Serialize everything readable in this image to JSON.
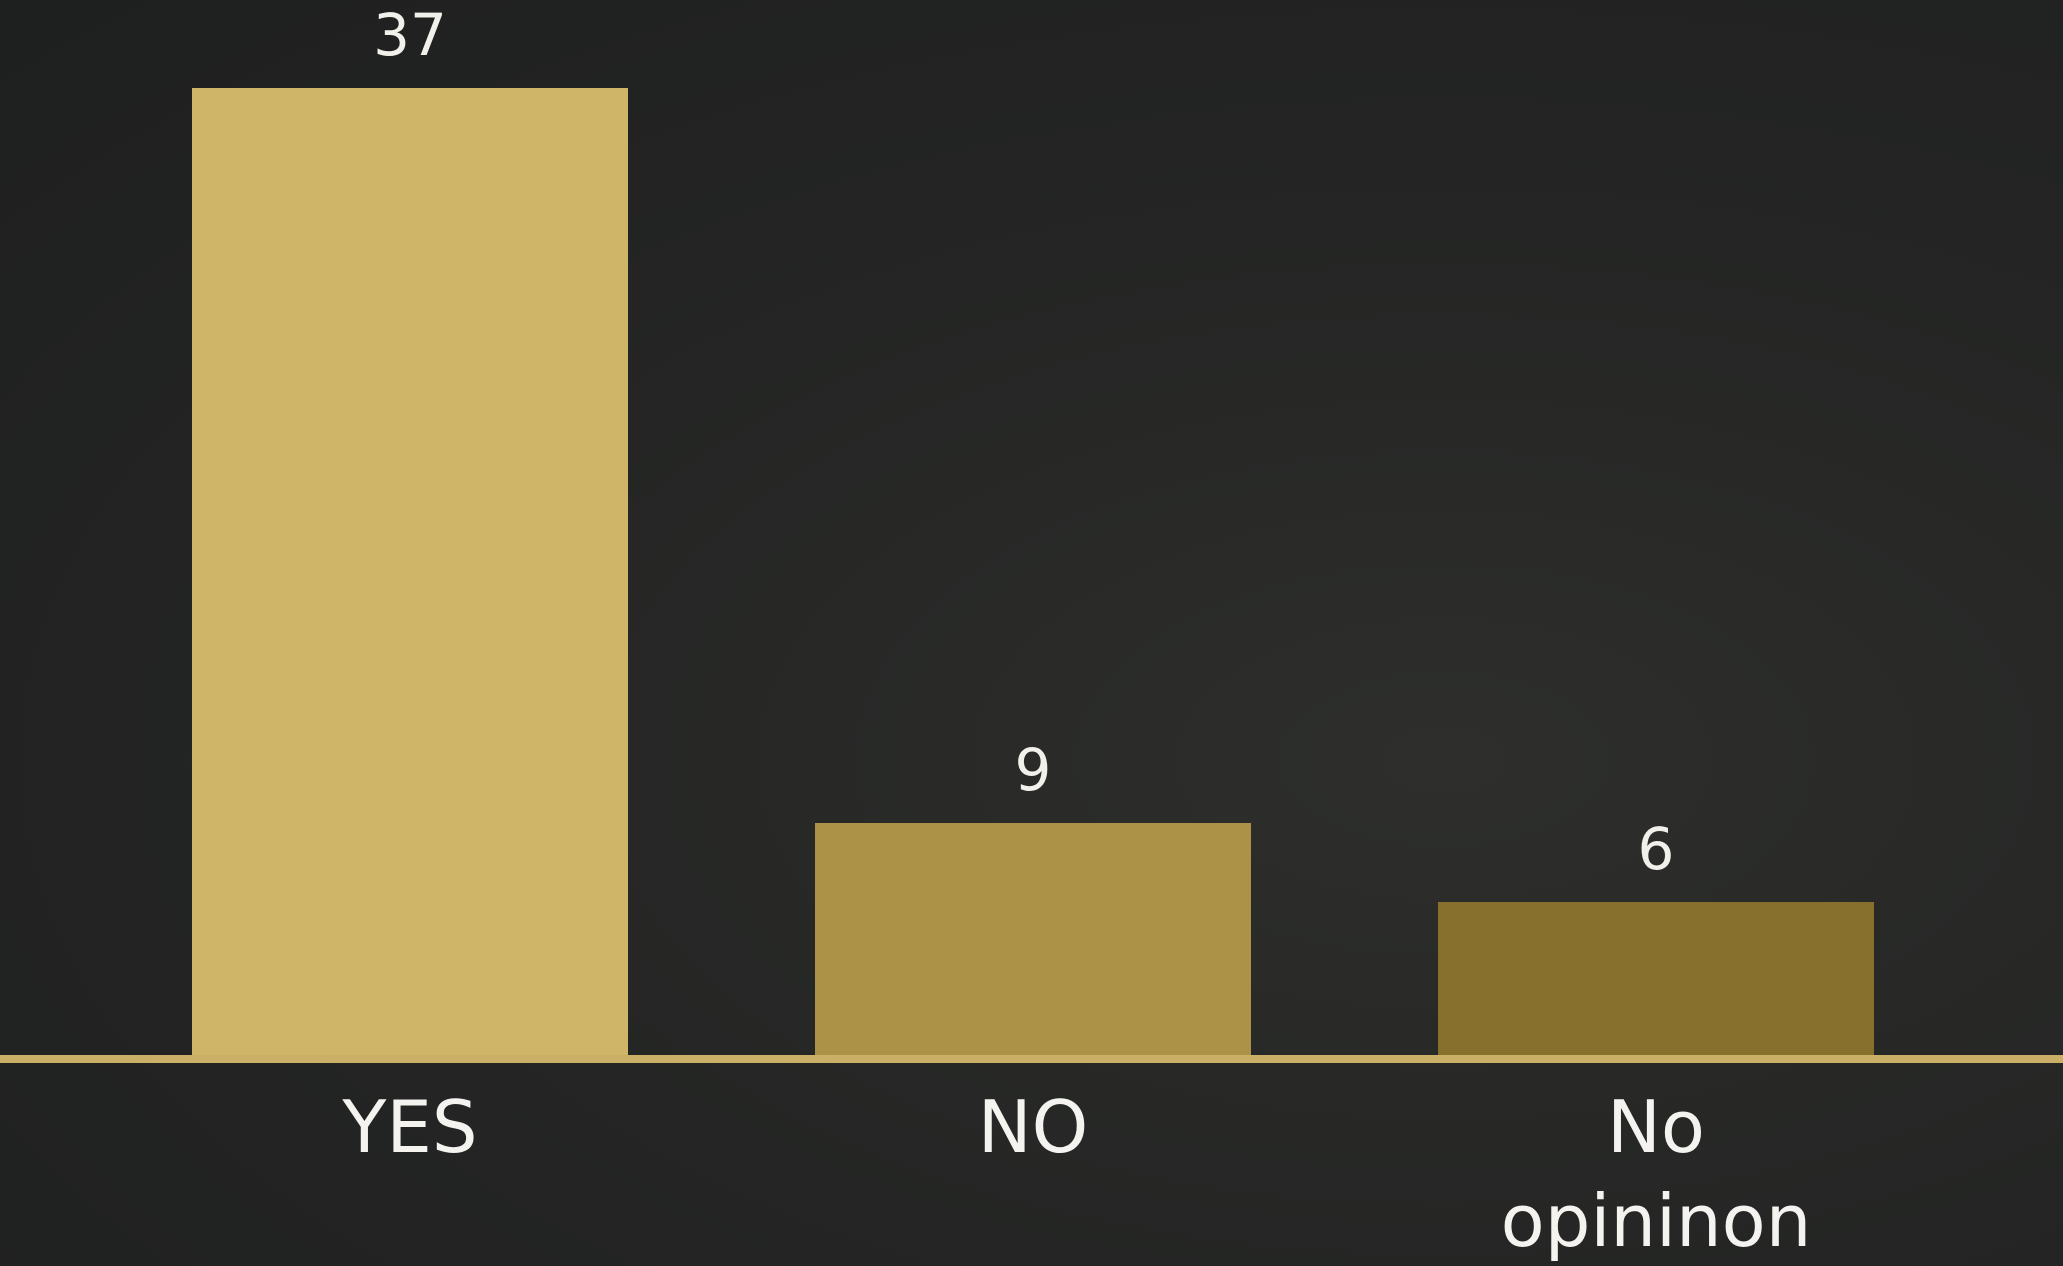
{
  "chart_data": {
    "type": "bar",
    "categories": [
      "YES",
      "NO",
      "No opininon"
    ],
    "values": [
      37,
      9,
      6
    ],
    "colors": [
      "#cfb567",
      "#ab9246",
      "#876f2d"
    ],
    "baseline_color": "#c9b066"
  }
}
